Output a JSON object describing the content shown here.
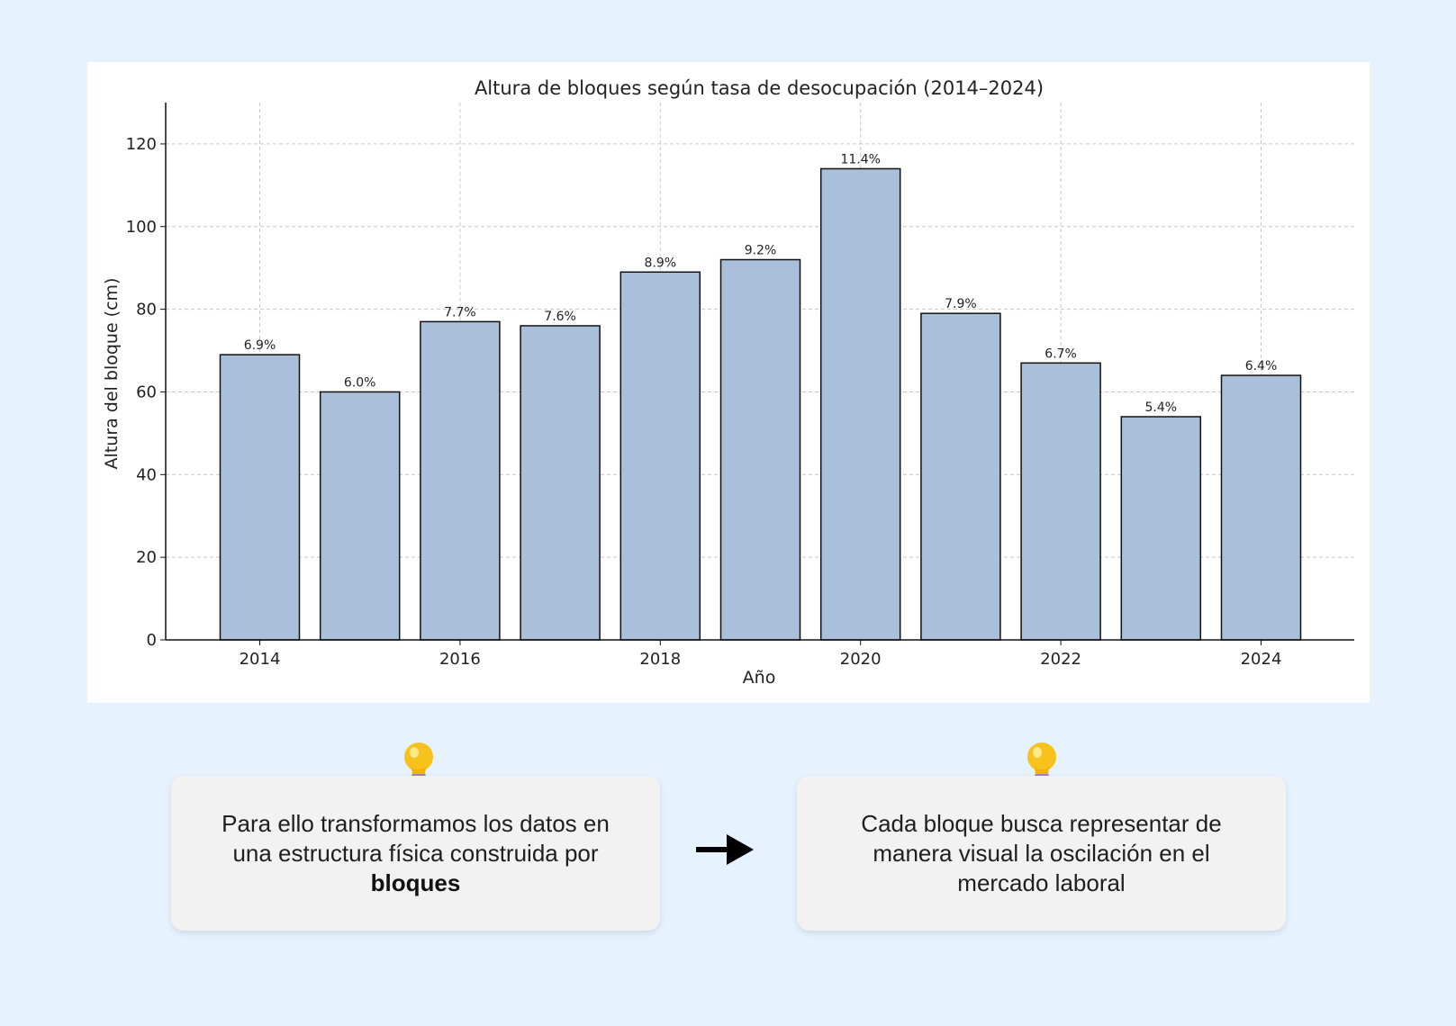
{
  "chart_data": {
    "type": "bar",
    "title": "Altura de bloques según tasa de desocupación (2014–2024)",
    "xlabel": "Año",
    "ylabel": "Altura del bloque (cm)",
    "categories": [
      2014,
      2015,
      2016,
      2017,
      2018,
      2019,
      2020,
      2021,
      2022,
      2023,
      2024
    ],
    "values": [
      69,
      60,
      77,
      76,
      89,
      92,
      114,
      79,
      67,
      54,
      64
    ],
    "data_labels": [
      "6.9%",
      "6.0%",
      "7.7%",
      "7.6%",
      "8.9%",
      "9.2%",
      "11.4%",
      "7.9%",
      "6.7%",
      "5.4%",
      "6.4%"
    ],
    "x_tick_labels": [
      "2014",
      "2016",
      "2018",
      "2020",
      "2022",
      "2024"
    ],
    "y_ticks": [
      0,
      20,
      40,
      60,
      80,
      100,
      120
    ],
    "ylim": [
      0,
      130
    ],
    "grid": true,
    "bar_color": "#aac0da",
    "bar_edge_color": "#111111"
  },
  "cards": {
    "left": {
      "text_before": "Para ello transformamos los datos en una estructura física construida por ",
      "text_bold": "bloques"
    },
    "right": {
      "text": "Cada bloque busca representar de manera visual la oscilación en el mercado laboral"
    }
  },
  "icons": {
    "bulb": "lightbulb-icon",
    "arrow": "arrow-right-icon"
  },
  "colors": {
    "background": "#e6f2fe",
    "card": "#f2f2f2",
    "panel": "#ffffff"
  }
}
